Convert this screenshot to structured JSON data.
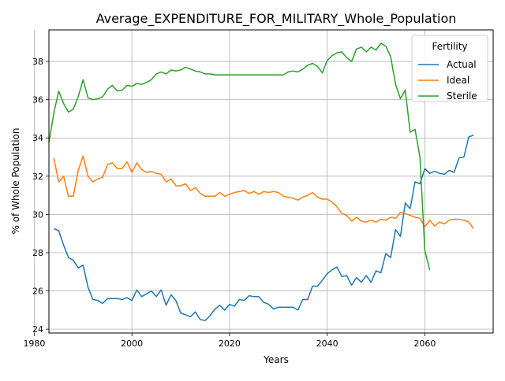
{
  "chart_data": {
    "type": "line",
    "title": "Average_EXPENDITURE_FOR_MILITARY_Whole_Population",
    "xlabel": "Years",
    "ylabel": "% of Whole Population",
    "xlim": [
      1983,
      2074
    ],
    "ylim": [
      23.8,
      39.65
    ],
    "xticks": [
      1980,
      2000,
      2020,
      2040,
      2060
    ],
    "yticks": [
      24,
      26,
      28,
      30,
      32,
      34,
      36,
      38
    ],
    "grid": true,
    "legend": {
      "title": "Fertility",
      "placement": "top-right"
    },
    "series": [
      {
        "name": "Actual",
        "color": "#1f77b4",
        "x": [
          1984,
          1985,
          1986,
          1987,
          1988,
          1989,
          1990,
          1991,
          1992,
          1993,
          1994,
          1995,
          1996,
          1997,
          1998,
          1999,
          2000,
          2001,
          2002,
          2003,
          2004,
          2005,
          2006,
          2007,
          2008,
          2009,
          2010,
          2011,
          2012,
          2013,
          2014,
          2015,
          2016,
          2017,
          2018,
          2019,
          2020,
          2021,
          2022,
          2023,
          2024,
          2025,
          2026,
          2027,
          2028,
          2029,
          2030,
          2031,
          2032,
          2033,
          2034,
          2035,
          2036,
          2037,
          2038,
          2039,
          2040,
          2041,
          2042,
          2043,
          2044,
          2045,
          2046,
          2047,
          2048,
          2049,
          2050,
          2051,
          2052,
          2053,
          2054,
          2055,
          2056,
          2057,
          2058,
          2059,
          2060,
          2061,
          2062,
          2063,
          2064,
          2065,
          2066,
          2067,
          2068,
          2069,
          2070
        ],
        "y": [
          29.25,
          29.15,
          28.4,
          27.75,
          27.6,
          27.2,
          27.35,
          26.2,
          25.55,
          25.5,
          25.35,
          25.6,
          25.6,
          25.6,
          25.55,
          25.65,
          25.5,
          26.05,
          25.7,
          25.85,
          26.0,
          25.7,
          26.05,
          25.25,
          25.8,
          25.5,
          24.85,
          24.75,
          24.65,
          24.9,
          24.5,
          24.45,
          24.7,
          25.05,
          25.25,
          25.0,
          25.3,
          25.2,
          25.55,
          25.5,
          25.75,
          25.7,
          25.7,
          25.4,
          25.3,
          25.05,
          25.15,
          25.15,
          25.15,
          25.15,
          25.0,
          25.55,
          25.55,
          26.25,
          26.25,
          26.55,
          26.9,
          27.1,
          27.25,
          26.75,
          26.8,
          26.3,
          26.7,
          26.45,
          26.8,
          26.45,
          27.05,
          26.95,
          27.95,
          27.75,
          29.2,
          28.85,
          30.6,
          30.3,
          31.7,
          31.6,
          32.4,
          32.15,
          32.25,
          32.15,
          32.1,
          32.3,
          32.2,
          32.95,
          33.0,
          34.05,
          34.15
        ]
      },
      {
        "name": "Ideal",
        "color": "#ff7f0e",
        "x": [
          1984,
          1985,
          1986,
          1987,
          1988,
          1989,
          1990,
          1991,
          1992,
          1993,
          1994,
          1995,
          1996,
          1997,
          1998,
          1999,
          2000,
          2001,
          2002,
          2003,
          2004,
          2005,
          2006,
          2007,
          2008,
          2009,
          2010,
          2011,
          2012,
          2013,
          2014,
          2015,
          2016,
          2017,
          2018,
          2019,
          2020,
          2021,
          2022,
          2023,
          2024,
          2025,
          2026,
          2027,
          2028,
          2029,
          2030,
          2031,
          2032,
          2033,
          2034,
          2035,
          2036,
          2037,
          2038,
          2039,
          2040,
          2041,
          2042,
          2043,
          2044,
          2045,
          2046,
          2047,
          2048,
          2049,
          2050,
          2051,
          2052,
          2053,
          2054,
          2055,
          2056,
          2057,
          2058,
          2059,
          2060,
          2061,
          2062,
          2063,
          2064,
          2065,
          2066,
          2067,
          2068,
          2069,
          2070
        ],
        "y": [
          32.95,
          31.7,
          32.0,
          30.95,
          30.95,
          32.3,
          33.05,
          32.0,
          31.7,
          31.85,
          31.95,
          32.6,
          32.7,
          32.4,
          32.4,
          32.75,
          32.2,
          32.7,
          32.35,
          32.2,
          32.25,
          32.15,
          32.1,
          31.7,
          31.85,
          31.5,
          31.5,
          31.6,
          31.25,
          31.4,
          31.1,
          30.95,
          30.95,
          30.95,
          31.15,
          30.95,
          31.05,
          31.15,
          31.2,
          31.25,
          31.1,
          31.2,
          31.05,
          31.2,
          31.15,
          31.2,
          31.15,
          30.95,
          30.9,
          30.85,
          30.75,
          30.9,
          31.0,
          31.15,
          30.9,
          30.8,
          30.8,
          30.65,
          30.4,
          30.05,
          29.95,
          29.65,
          29.85,
          29.65,
          29.6,
          29.7,
          29.6,
          29.75,
          29.7,
          29.85,
          29.8,
          30.1,
          30.05,
          29.95,
          29.85,
          29.8,
          29.35,
          29.7,
          29.4,
          29.6,
          29.5,
          29.7,
          29.75,
          29.75,
          29.7,
          29.6,
          29.25
        ]
      },
      {
        "name": "Sterile",
        "color": "#2ca02c",
        "x": [
          1983,
          1984,
          1985,
          1986,
          1987,
          1988,
          1989,
          1990,
          1991,
          1992,
          1993,
          1994,
          1995,
          1996,
          1997,
          1998,
          1999,
          2000,
          2001,
          2002,
          2003,
          2004,
          2005,
          2006,
          2007,
          2008,
          2009,
          2010,
          2011,
          2012,
          2013,
          2014,
          2015,
          2016,
          2017,
          2018,
          2019,
          2020,
          2021,
          2022,
          2023,
          2024,
          2025,
          2026,
          2027,
          2028,
          2029,
          2030,
          2031,
          2032,
          2033,
          2034,
          2035,
          2036,
          2037,
          2038,
          2039,
          2040,
          2041,
          2042,
          2043,
          2044,
          2045,
          2046,
          2047,
          2048,
          2049,
          2050,
          2051,
          2052,
          2053,
          2054,
          2055,
          2056,
          2057,
          2058,
          2059,
          2060,
          2061
        ],
        "y": [
          33.75,
          35.3,
          36.45,
          35.8,
          35.35,
          35.5,
          36.15,
          37.05,
          36.1,
          36.0,
          36.05,
          36.15,
          36.55,
          36.75,
          36.45,
          36.5,
          36.75,
          36.7,
          36.85,
          36.8,
          36.9,
          37.05,
          37.35,
          37.45,
          37.35,
          37.55,
          37.5,
          37.55,
          37.7,
          37.6,
          37.5,
          37.45,
          37.35,
          37.35,
          37.3,
          37.3,
          37.3,
          37.3,
          37.3,
          37.3,
          37.3,
          37.3,
          37.3,
          37.3,
          37.3,
          37.3,
          37.3,
          37.3,
          37.3,
          37.45,
          37.5,
          37.45,
          37.6,
          37.8,
          37.9,
          37.75,
          37.4,
          38.05,
          38.3,
          38.45,
          38.5,
          38.2,
          38.0,
          38.65,
          38.75,
          38.5,
          38.75,
          38.6,
          38.95,
          38.8,
          38.25,
          36.8,
          36.05,
          36.5,
          34.3,
          34.45,
          33.0,
          28.1,
          27.1
        ]
      }
    ]
  }
}
